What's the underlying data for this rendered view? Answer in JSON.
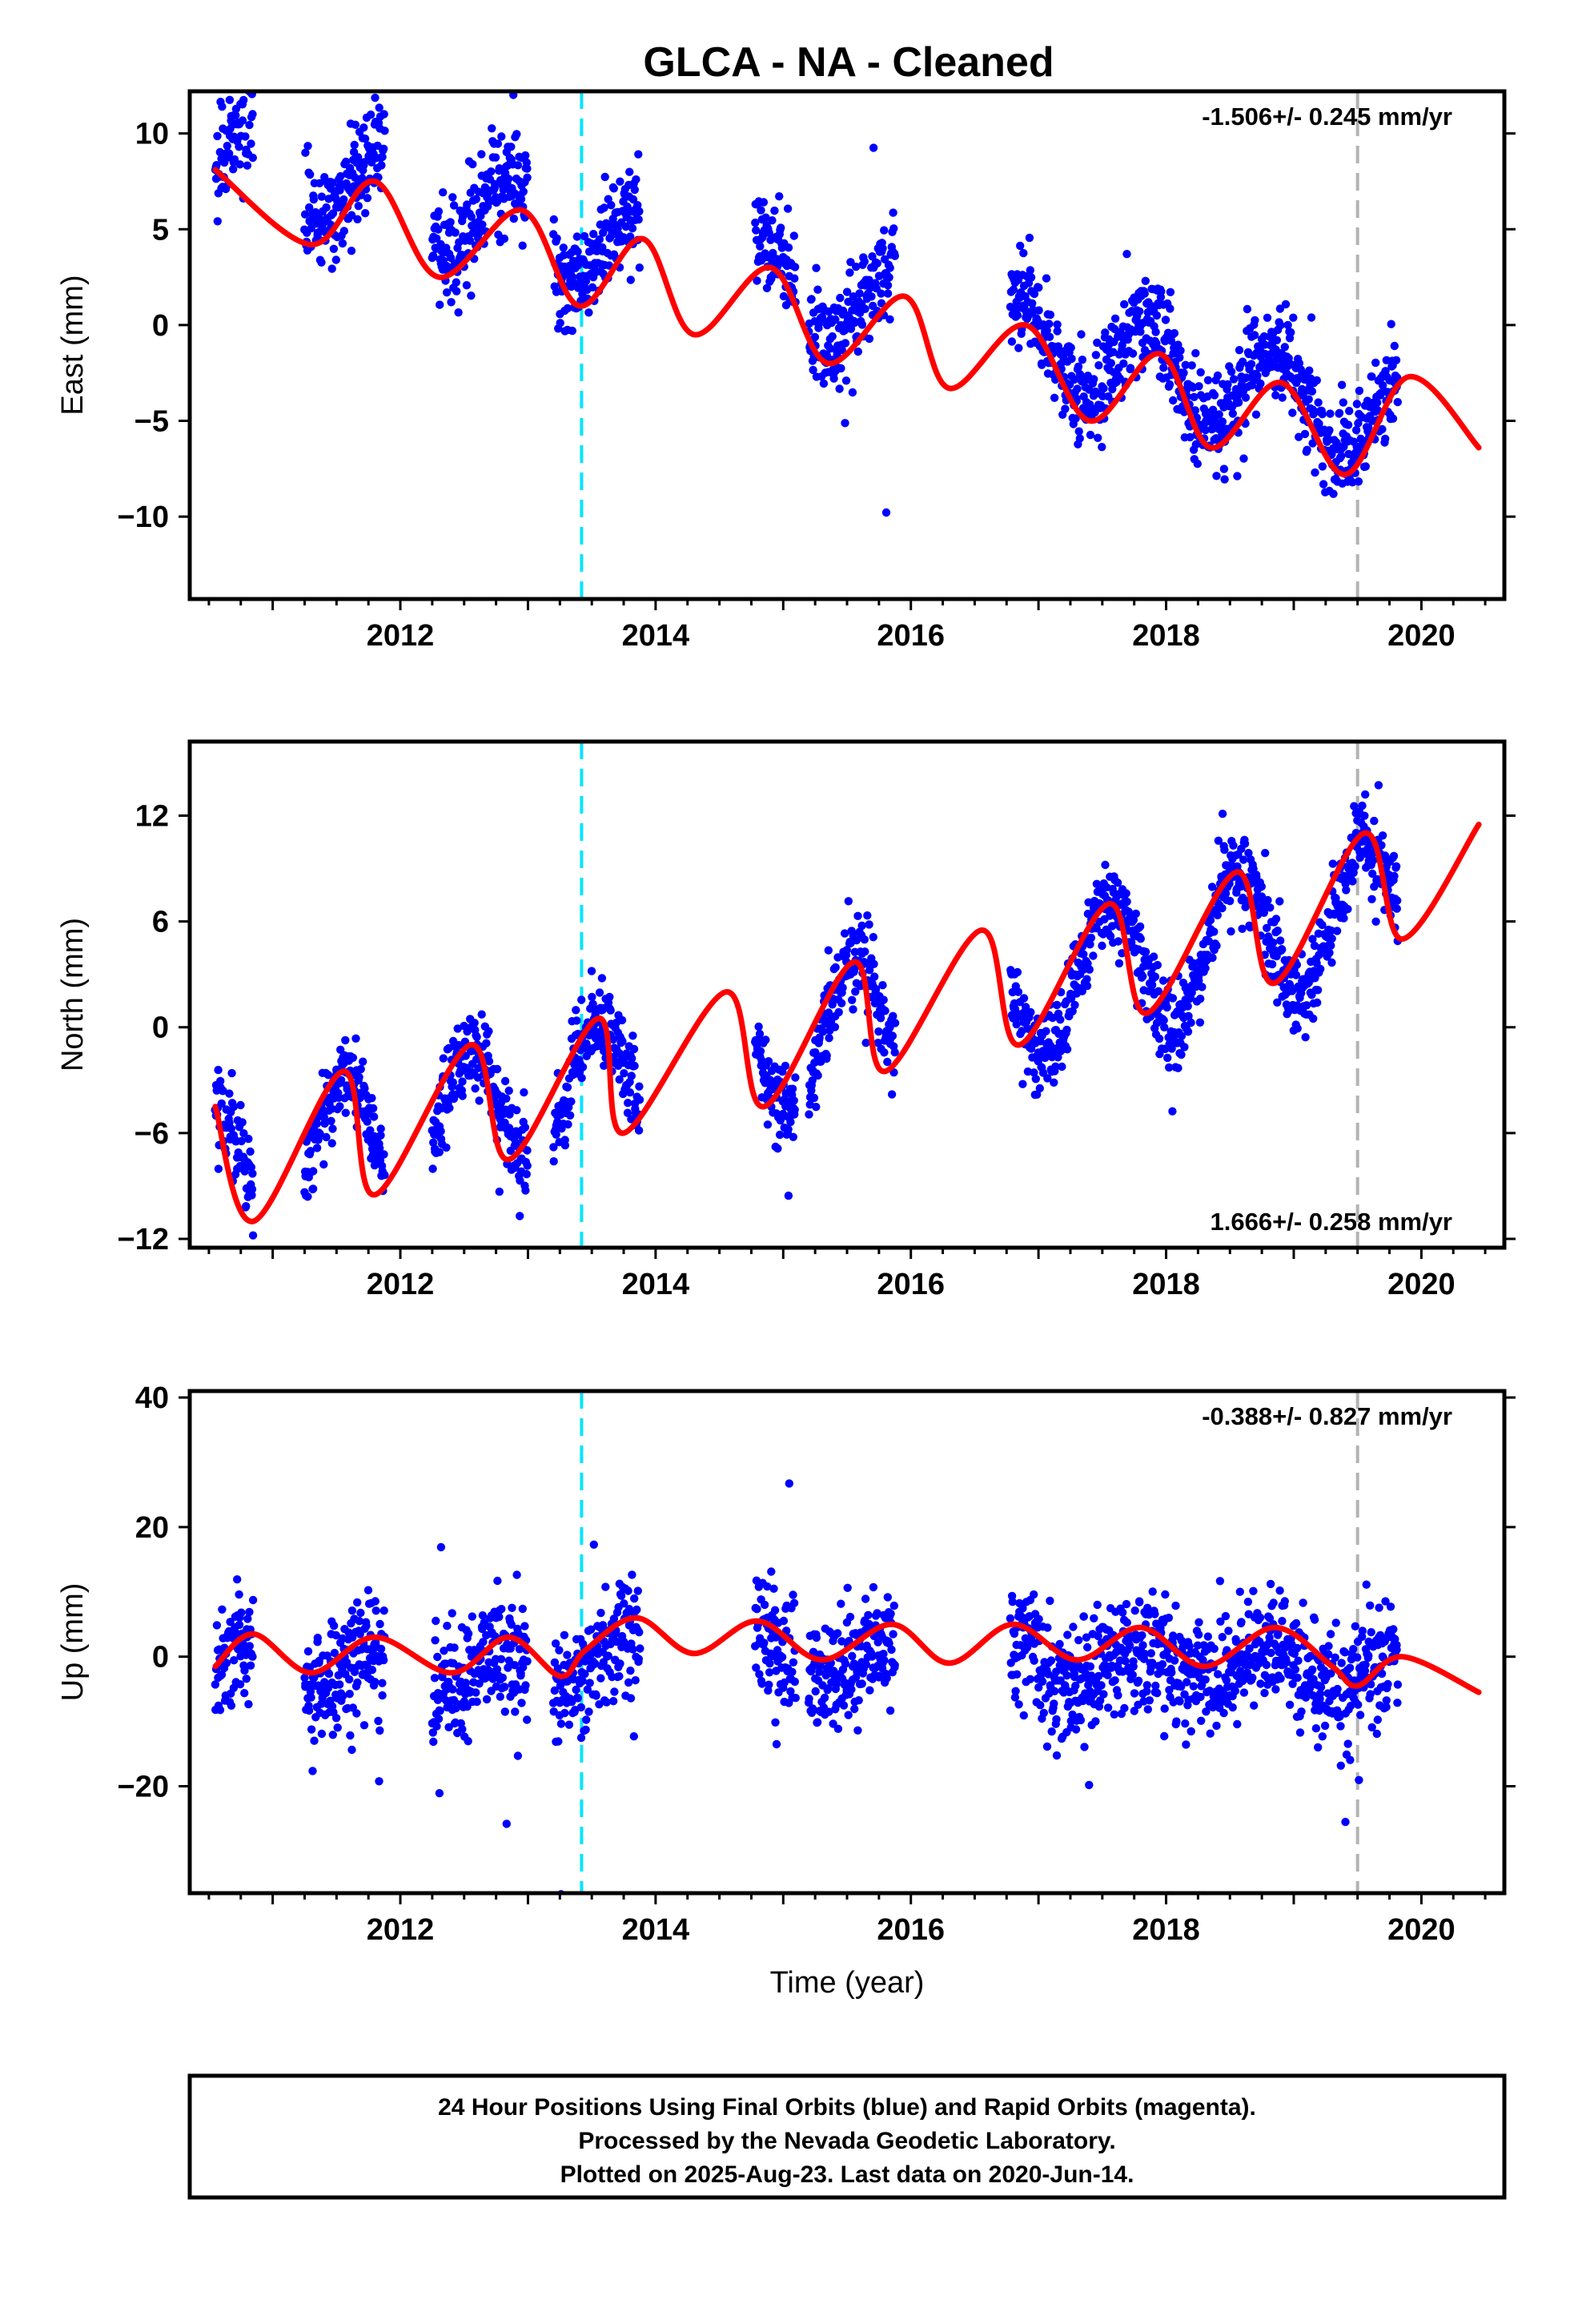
{
  "title": "GLCA  - NA - Cleaned",
  "colors": {
    "final_orbits": "#0000ff",
    "model": "#ff0000",
    "antenna_change": "#00e5ff",
    "equipment_change": "#b3b3b3",
    "rapid_orbits": "#ff00ff"
  },
  "chart_data": [
    {
      "type": "scatter",
      "component": "east",
      "ylabel": "East (mm)",
      "xlabel": "",
      "xlim": [
        2010.35,
        2020.65
      ],
      "ylim": [
        -14.3,
        12.2
      ],
      "xticks": [
        2012,
        2014,
        2016,
        2018,
        2020
      ],
      "yticks": [
        10,
        5,
        0,
        -5,
        -10
      ],
      "ytick_labels": [
        "10",
        "5",
        "0",
        "−5",
        "−10"
      ],
      "rate_text": "-1.506+/- 0.245 mm/yr",
      "rate_position": "top-right",
      "rate_mm_per_yr": -1.506,
      "annual_amplitude_mm": 2.3,
      "annual_peak_year_fraction": 0.85,
      "offset_mm": 0.0,
      "noise_mm": 1.3,
      "model_anchor": [
        2010.55,
        8.1
      ],
      "vertical_lines": [
        {
          "x": 2013.42,
          "color": "#00e5ff",
          "style": "dashed"
        },
        {
          "x": 2019.5,
          "color": "#b3b3b3",
          "style": "dashed"
        }
      ],
      "data_segments": [
        [
          2010.55,
          2010.85
        ],
        [
          2011.25,
          2011.88
        ],
        [
          2012.25,
          2013.0
        ],
        [
          2013.2,
          2013.88
        ],
        [
          2014.78,
          2015.1
        ],
        [
          2015.2,
          2015.88
        ],
        [
          2016.78,
          2019.82
        ]
      ],
      "model_points": {
        "x": [
          2010.55,
          2011.3,
          2011.8,
          2012.3,
          2012.95,
          2013.4,
          2013.9,
          2014.3,
          2014.9,
          2015.35,
          2015.95,
          2016.3,
          2016.9,
          2017.4,
          2017.95,
          2018.35,
          2018.9,
          2019.4,
          2019.9,
          2020.45
        ],
        "y": [
          8.1,
          4.2,
          7.5,
          2.5,
          6.0,
          1.0,
          4.5,
          -0.5,
          3.0,
          -2.0,
          1.5,
          -3.3,
          0.0,
          -5.0,
          -1.5,
          -6.4,
          -3.0,
          -7.8,
          -2.7,
          -6.4
        ]
      }
    },
    {
      "type": "scatter",
      "component": "north",
      "ylabel": "North (mm)",
      "xlabel": "",
      "xlim": [
        2010.35,
        2020.65
      ],
      "ylim": [
        -12.5,
        16.2
      ],
      "xticks": [
        2012,
        2014,
        2016,
        2018,
        2020
      ],
      "yticks": [
        12,
        6,
        0,
        -6,
        -12
      ],
      "ytick_labels": [
        "12",
        "6",
        "0",
        "−6",
        "−12"
      ],
      "rate_text": "1.666+/- 0.258 mm/yr",
      "rate_position": "bottom-right",
      "rate_mm_per_yr": 1.666,
      "annual_amplitude_mm": 4.0,
      "annual_peak_year_fraction": 0.55,
      "offset_mm": 0.0,
      "noise_mm": 1.2,
      "model_anchor": [
        2010.55,
        -4.5
      ],
      "vertical_lines": [
        {
          "x": 2013.42,
          "color": "#00e5ff",
          "style": "dashed"
        },
        {
          "x": 2019.5,
          "color": "#b3b3b3",
          "style": "dashed"
        }
      ],
      "data_segments": [
        [
          2010.55,
          2010.85
        ],
        [
          2011.25,
          2011.88
        ],
        [
          2012.25,
          2013.0
        ],
        [
          2013.2,
          2013.88
        ],
        [
          2014.78,
          2015.1
        ],
        [
          2015.2,
          2015.88
        ],
        [
          2016.78,
          2019.82
        ]
      ],
      "model_points": {
        "x": [
          2010.55,
          2010.85,
          2011.55,
          2011.8,
          2012.55,
          2012.85,
          2013.55,
          2013.75,
          2014.55,
          2014.85,
          2015.55,
          2015.8,
          2016.55,
          2016.85,
          2017.55,
          2017.85,
          2018.55,
          2018.85,
          2019.55,
          2019.85,
          2020.45
        ],
        "y": [
          -4.5,
          -11.0,
          -2.5,
          -9.5,
          -1.0,
          -7.5,
          0.5,
          -6.0,
          2.0,
          -4.5,
          3.7,
          -2.5,
          5.5,
          -1.0,
          7.0,
          0.8,
          8.8,
          2.5,
          11.0,
          5.0,
          11.5
        ]
      }
    },
    {
      "type": "scatter",
      "component": "up",
      "ylabel": "Up (mm)",
      "xlabel": "Time (year)",
      "xlim": [
        2010.35,
        2020.65
      ],
      "ylim": [
        -36.5,
        41.0
      ],
      "xticks": [
        2012,
        2014,
        2016,
        2018,
        2020
      ],
      "yticks": [
        40,
        20,
        0,
        -20
      ],
      "ytick_labels": [
        "40",
        "20",
        "0",
        "−20"
      ],
      "rate_text": "-0.388+/- 0.827 mm/yr",
      "rate_position": "top-right",
      "rate_mm_per_yr": -0.388,
      "annual_amplitude_mm": 3.0,
      "annual_peak_year_fraction": 0.8,
      "offset_mm": 3.0,
      "noise_mm": 4.5,
      "model_anchor": [
        2010.55,
        -1.5
      ],
      "vertical_lines": [
        {
          "x": 2013.42,
          "color": "#00e5ff",
          "style": "dashed"
        },
        {
          "x": 2019.5,
          "color": "#b3b3b3",
          "style": "dashed"
        }
      ],
      "data_segments": [
        [
          2010.55,
          2010.85
        ],
        [
          2011.25,
          2011.88
        ],
        [
          2012.25,
          2013.0
        ],
        [
          2013.2,
          2013.88
        ],
        [
          2014.78,
          2015.1
        ],
        [
          2015.2,
          2015.88
        ],
        [
          2016.78,
          2019.82
        ]
      ],
      "model_points": {
        "x": [
          2010.55,
          2010.85,
          2011.3,
          2011.8,
          2012.4,
          2012.85,
          2013.25,
          2013.45,
          2013.85,
          2014.3,
          2014.8,
          2015.3,
          2015.85,
          2016.3,
          2016.8,
          2017.3,
          2017.8,
          2018.3,
          2018.85,
          2019.3,
          2019.5,
          2019.85,
          2020.45
        ],
        "y": [
          -1.5,
          3.5,
          -2.5,
          3.0,
          -2.5,
          3.0,
          -3.0,
          1.0,
          6.0,
          0.5,
          5.5,
          -0.5,
          5.0,
          -1.0,
          5.0,
          -0.5,
          4.5,
          -1.5,
          4.5,
          -1.5,
          -4.5,
          0.0,
          -5.5
        ]
      }
    }
  ],
  "caption": {
    "line1": "24 Hour Positions Using Final Orbits (blue) and Rapid Orbits (magenta).",
    "line2": "Processed by the Nevada Geodetic Laboratory.",
    "line3": "Plotted on 2025-Aug-23. Last data on 2020-Jun-14."
  }
}
